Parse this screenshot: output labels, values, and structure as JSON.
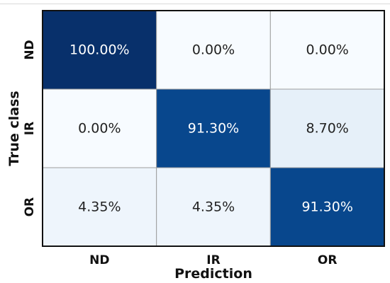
{
  "chart_data": {
    "type": "heatmap",
    "title": "",
    "xlabel": "Prediction",
    "ylabel": "True class",
    "x_categories": [
      "ND",
      "IR",
      "OR"
    ],
    "y_categories": [
      "ND",
      "IR",
      "OR"
    ],
    "values": [
      [
        100.0,
        0.0,
        0.0
      ],
      [
        0.0,
        91.3,
        8.7
      ],
      [
        4.35,
        4.35,
        91.3
      ]
    ],
    "cell_labels": [
      [
        "100.00%",
        "0.00%",
        "0.00%"
      ],
      [
        "0.00%",
        "91.30%",
        "8.70%"
      ],
      [
        "4.35%",
        "4.35%",
        "91.30%"
      ]
    ],
    "value_range": [
      0,
      100
    ],
    "colormap": "Blues",
    "colors": {
      "low": "#f7fbff",
      "high": "#08306b",
      "text_dark": "#222222",
      "text_light": "#ffffff",
      "cell_border": "#9e9e9e",
      "frame": "#111111"
    },
    "grid": true,
    "colorbar": false
  }
}
